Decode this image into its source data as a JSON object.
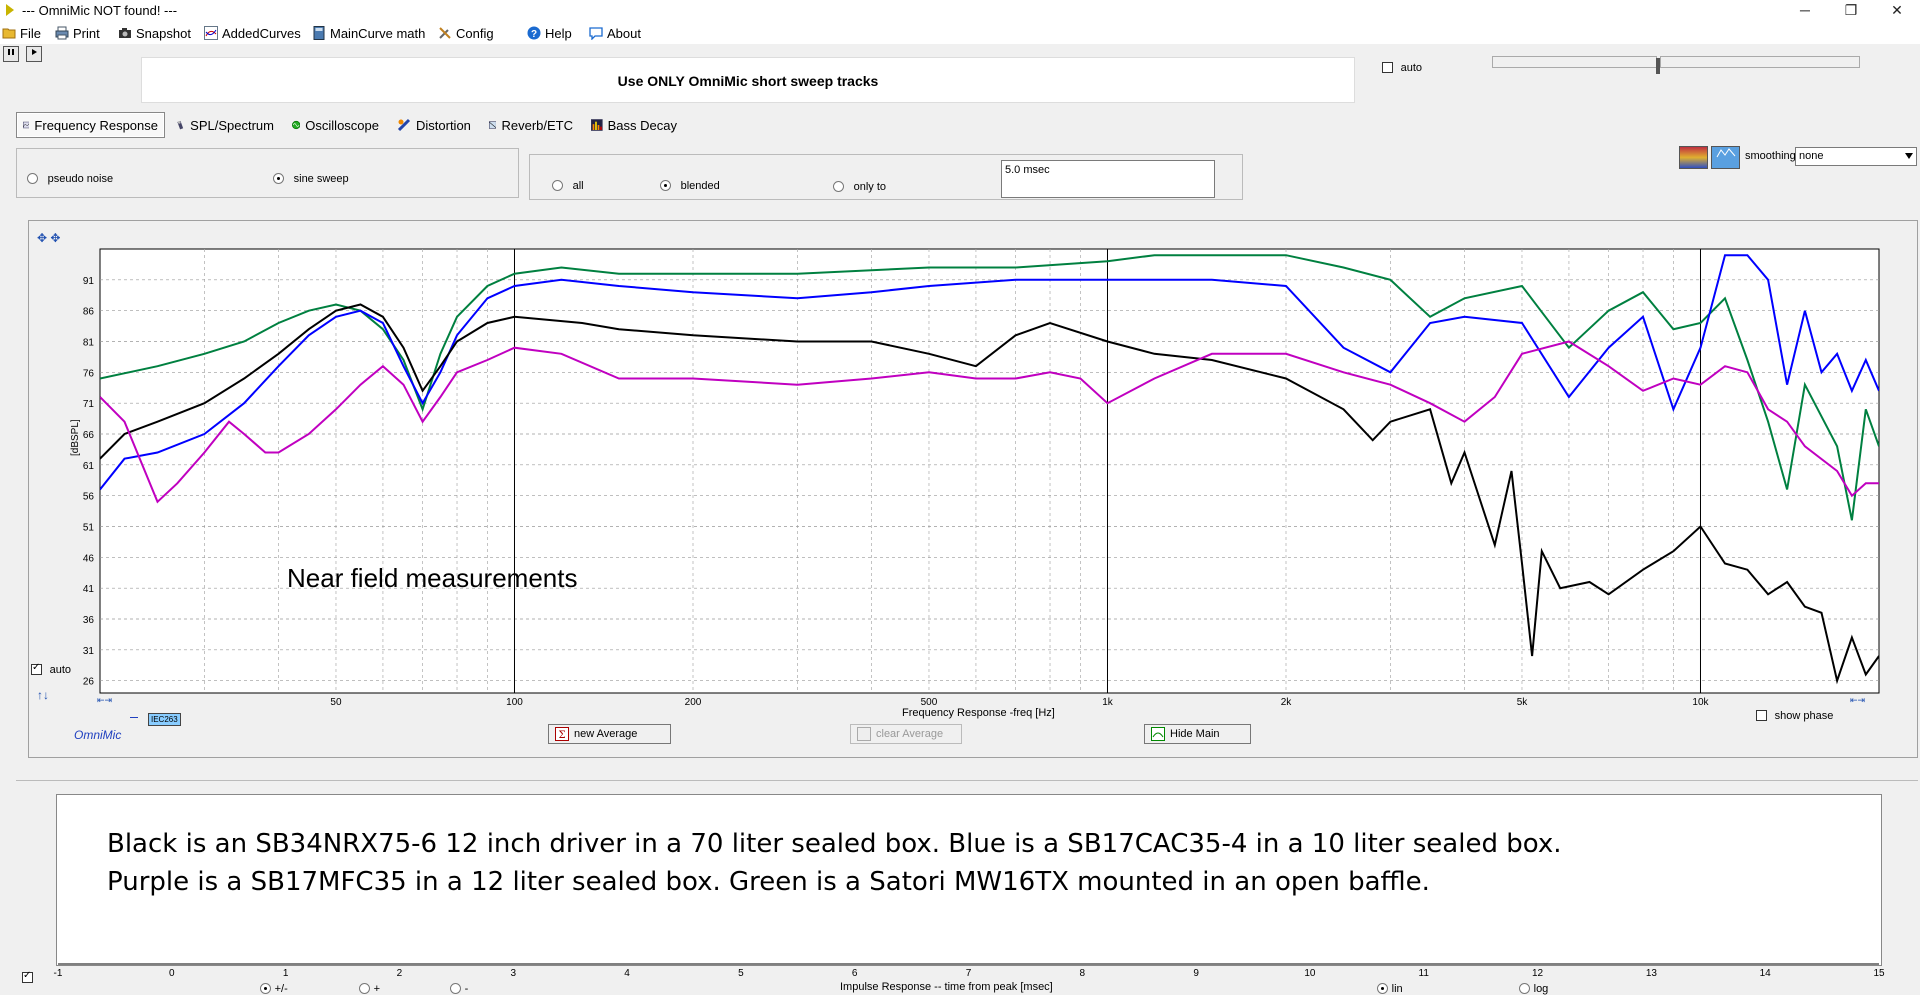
{
  "window": {
    "title": "--- OmniMic NOT found! ---",
    "minimize_glyph": "─",
    "maximize_glyph": "❐",
    "close_glyph": "✕"
  },
  "menu": [
    {
      "label": "File",
      "icon": "folder-icon"
    },
    {
      "label": "Print",
      "icon": "printer-icon"
    },
    {
      "label": "Snapshot",
      "icon": "camera-icon"
    },
    {
      "label": "AddedCurves",
      "icon": "curves-icon"
    },
    {
      "label": "MainCurve math",
      "icon": "calculator-icon"
    },
    {
      "label": "Config",
      "icon": "tools-icon"
    },
    {
      "label": "Help",
      "icon": "help-icon"
    },
    {
      "label": "About",
      "icon": "chat-icon"
    }
  ],
  "banner": "Use ONLY OmniMic short sweep tracks",
  "auto_top": {
    "label": "auto",
    "checked": false
  },
  "tabs": [
    {
      "label": "Frequency Response",
      "active": true
    },
    {
      "label": "SPL/Spectrum",
      "active": false
    },
    {
      "label": "Oscilloscope",
      "active": false
    },
    {
      "label": "Distortion",
      "active": false
    },
    {
      "label": "Reverb/ETC",
      "active": false
    },
    {
      "label": "Bass Decay",
      "active": false
    }
  ],
  "signal": {
    "pseudo_noise": "pseudo noise",
    "sine_sweep": "sine sweep",
    "selected": "sine sweep"
  },
  "gating": {
    "all": "all",
    "blended": "blended",
    "only_to": "only to",
    "selected": "blended",
    "time_value": "5.0 msec"
  },
  "smoothing": {
    "label": "smoothing",
    "value": "none"
  },
  "chart_controls": {
    "auto_label": "auto",
    "auto_checked": true,
    "show_phase_label": "show phase",
    "show_phase_checked": false,
    "omnimic_label": "OmniMic",
    "iec_label": "IEC263",
    "nearfield_annotation": "Near field measurements"
  },
  "buttons": {
    "new_average": "new Average",
    "clear_average": "clear Average",
    "hide_main": "Hide Main"
  },
  "notes": {
    "line1": "Black is an SB34NRX75-6 12 inch driver in a 70 liter sealed box.  Blue is a SB17CAC35-4 in a 10 liter sealed box.",
    "line2": "Purple is a SB17MFC35 in a 12 liter sealed box.  Green is a Satori MW16TX mounted in an open baffle."
  },
  "impulse": {
    "xlabel": "Impulse Response  -- time from peak [msec]",
    "ticks": [
      "-1",
      "0",
      "1",
      "2",
      "3",
      "4",
      "5",
      "6",
      "7",
      "8",
      "9",
      "10",
      "11",
      "12",
      "13",
      "14",
      "15"
    ],
    "radio_pm": "+/-",
    "radio_plus": "+",
    "radio_minus": "-",
    "lin": "lin",
    "log": "log",
    "selected_sign": "+/-",
    "selected_scale": "lin"
  },
  "chart_data": {
    "type": "line",
    "xlabel": "Frequency Response -freq [Hz]",
    "ylabel": "[dBSPL]",
    "xscale": "log",
    "xlim": [
      20,
      20000
    ],
    "ylim": [
      24,
      96
    ],
    "grid": true,
    "x_ticks": [
      {
        "v": 50,
        "label": "50"
      },
      {
        "v": 100,
        "label": "100"
      },
      {
        "v": 200,
        "label": "200"
      },
      {
        "v": 500,
        "label": "500"
      },
      {
        "v": 1000,
        "label": "1k"
      },
      {
        "v": 2000,
        "label": "2k"
      },
      {
        "v": 5000,
        "label": "5k"
      },
      {
        "v": 10000,
        "label": "10k"
      }
    ],
    "y_ticks": [
      91,
      86,
      81,
      76,
      71,
      66,
      61,
      56,
      51,
      46,
      41,
      36,
      31,
      26
    ],
    "cursor_lines_hz": [
      100,
      1000,
      10000
    ],
    "series": [
      {
        "color": "#008040",
        "points": [
          [
            20,
            75
          ],
          [
            25,
            77
          ],
          [
            30,
            79
          ],
          [
            35,
            81
          ],
          [
            40,
            84
          ],
          [
            45,
            86
          ],
          [
            50,
            87
          ],
          [
            55,
            86
          ],
          [
            60,
            83
          ],
          [
            65,
            78
          ],
          [
            70,
            70
          ],
          [
            75,
            79
          ],
          [
            80,
            85
          ],
          [
            90,
            90
          ],
          [
            100,
            92
          ],
          [
            120,
            93
          ],
          [
            150,
            92
          ],
          [
            200,
            92
          ],
          [
            300,
            92
          ],
          [
            500,
            93
          ],
          [
            700,
            93
          ],
          [
            1000,
            94
          ],
          [
            1200,
            95
          ],
          [
            1500,
            95
          ],
          [
            2000,
            95
          ],
          [
            2500,
            93
          ],
          [
            3000,
            91
          ],
          [
            3500,
            85
          ],
          [
            4000,
            88
          ],
          [
            5000,
            90
          ],
          [
            6000,
            80
          ],
          [
            7000,
            86
          ],
          [
            8000,
            89
          ],
          [
            9000,
            83
          ],
          [
            10000,
            84
          ],
          [
            11000,
            88
          ],
          [
            12000,
            78
          ],
          [
            13000,
            68
          ],
          [
            14000,
            57
          ],
          [
            15000,
            74
          ],
          [
            17000,
            64
          ],
          [
            18000,
            52
          ],
          [
            19000,
            70
          ],
          [
            20000,
            64
          ]
        ]
      },
      {
        "color": "#0000ff",
        "points": [
          [
            20,
            57
          ],
          [
            22,
            62
          ],
          [
            25,
            63
          ],
          [
            30,
            66
          ],
          [
            35,
            71
          ],
          [
            40,
            77
          ],
          [
            45,
            82
          ],
          [
            50,
            85
          ],
          [
            55,
            86
          ],
          [
            60,
            84
          ],
          [
            65,
            77
          ],
          [
            70,
            71
          ],
          [
            75,
            76
          ],
          [
            80,
            82
          ],
          [
            90,
            88
          ],
          [
            100,
            90
          ],
          [
            120,
            91
          ],
          [
            150,
            90
          ],
          [
            200,
            89
          ],
          [
            300,
            88
          ],
          [
            400,
            89
          ],
          [
            500,
            90
          ],
          [
            700,
            91
          ],
          [
            1000,
            91
          ],
          [
            1500,
            91
          ],
          [
            2000,
            90
          ],
          [
            2500,
            80
          ],
          [
            3000,
            76
          ],
          [
            3500,
            84
          ],
          [
            4000,
            85
          ],
          [
            5000,
            84
          ],
          [
            6000,
            72
          ],
          [
            7000,
            80
          ],
          [
            8000,
            85
          ],
          [
            9000,
            70
          ],
          [
            10000,
            80
          ],
          [
            11000,
            95
          ],
          [
            12000,
            95
          ],
          [
            13000,
            91
          ],
          [
            14000,
            74
          ],
          [
            15000,
            86
          ],
          [
            16000,
            76
          ],
          [
            17000,
            79
          ],
          [
            18000,
            73
          ],
          [
            19000,
            78
          ],
          [
            20000,
            73
          ]
        ]
      },
      {
        "color": "#000000",
        "points": [
          [
            20,
            62
          ],
          [
            22,
            66
          ],
          [
            25,
            68
          ],
          [
            30,
            71
          ],
          [
            35,
            75
          ],
          [
            40,
            79
          ],
          [
            45,
            83
          ],
          [
            50,
            86
          ],
          [
            55,
            87
          ],
          [
            60,
            85
          ],
          [
            65,
            80
          ],
          [
            70,
            73
          ],
          [
            75,
            77
          ],
          [
            80,
            81
          ],
          [
            90,
            84
          ],
          [
            100,
            85
          ],
          [
            130,
            84
          ],
          [
            150,
            83
          ],
          [
            200,
            82
          ],
          [
            300,
            81
          ],
          [
            400,
            81
          ],
          [
            500,
            79
          ],
          [
            600,
            77
          ],
          [
            700,
            82
          ],
          [
            800,
            84
          ],
          [
            1000,
            81
          ],
          [
            1200,
            79
          ],
          [
            1500,
            78
          ],
          [
            2000,
            75
          ],
          [
            2500,
            70
          ],
          [
            2800,
            65
          ],
          [
            3000,
            68
          ],
          [
            3500,
            70
          ],
          [
            3800,
            58
          ],
          [
            4000,
            63
          ],
          [
            4500,
            48
          ],
          [
            4800,
            60
          ],
          [
            5000,
            45
          ],
          [
            5200,
            30
          ],
          [
            5400,
            47
          ],
          [
            5800,
            41
          ],
          [
            6500,
            42
          ],
          [
            7000,
            40
          ],
          [
            8000,
            44
          ],
          [
            9000,
            47
          ],
          [
            10000,
            51
          ],
          [
            11000,
            45
          ],
          [
            12000,
            44
          ],
          [
            13000,
            40
          ],
          [
            14000,
            42
          ],
          [
            15000,
            38
          ],
          [
            16000,
            37
          ],
          [
            17000,
            26
          ],
          [
            18000,
            33
          ],
          [
            19000,
            27
          ],
          [
            20000,
            30
          ]
        ]
      },
      {
        "color": "#c000c0",
        "points": [
          [
            20,
            72
          ],
          [
            22,
            68
          ],
          [
            25,
            55
          ],
          [
            27,
            58
          ],
          [
            30,
            63
          ],
          [
            33,
            68
          ],
          [
            35,
            66
          ],
          [
            38,
            63
          ],
          [
            40,
            63
          ],
          [
            45,
            66
          ],
          [
            50,
            70
          ],
          [
            55,
            74
          ],
          [
            60,
            77
          ],
          [
            65,
            74
          ],
          [
            70,
            68
          ],
          [
            75,
            72
          ],
          [
            80,
            76
          ],
          [
            90,
            78
          ],
          [
            100,
            80
          ],
          [
            120,
            79
          ],
          [
            150,
            75
          ],
          [
            200,
            75
          ],
          [
            300,
            74
          ],
          [
            400,
            75
          ],
          [
            500,
            76
          ],
          [
            600,
            75
          ],
          [
            700,
            75
          ],
          [
            800,
            76
          ],
          [
            900,
            75
          ],
          [
            1000,
            71
          ],
          [
            1200,
            75
          ],
          [
            1500,
            79
          ],
          [
            2000,
            79
          ],
          [
            2500,
            76
          ],
          [
            3000,
            74
          ],
          [
            3500,
            71
          ],
          [
            4000,
            68
          ],
          [
            4500,
            72
          ],
          [
            5000,
            79
          ],
          [
            6000,
            81
          ],
          [
            7000,
            77
          ],
          [
            8000,
            73
          ],
          [
            9000,
            75
          ],
          [
            10000,
            74
          ],
          [
            11000,
            77
          ],
          [
            12000,
            76
          ],
          [
            13000,
            70
          ],
          [
            14000,
            68
          ],
          [
            15000,
            64
          ],
          [
            17000,
            60
          ],
          [
            18000,
            56
          ],
          [
            19000,
            58
          ],
          [
            20000,
            58
          ]
        ]
      }
    ]
  }
}
